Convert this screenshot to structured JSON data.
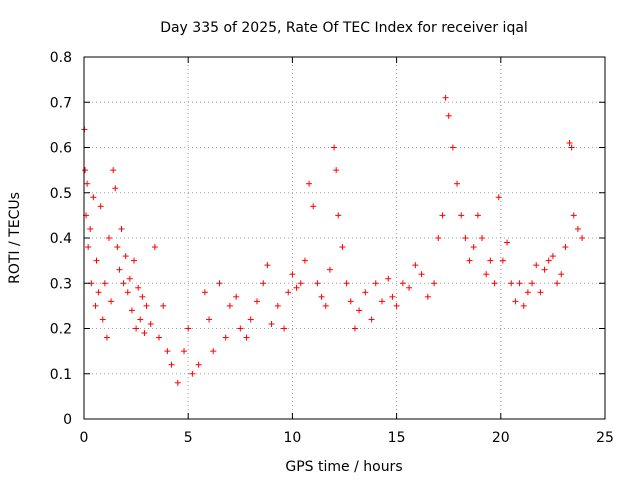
{
  "chart_data": {
    "type": "scatter",
    "title": "Day 335 of 2025, Rate Of TEC Index for receiver iqal",
    "xlabel": "GPS time / hours",
    "ylabel": "ROTI / TECUs",
    "xlim": [
      0,
      25
    ],
    "ylim": [
      0,
      0.8
    ],
    "x_ticks": [
      0,
      5,
      10,
      15,
      20,
      25
    ],
    "x_tick_labels": [
      "0",
      "5",
      "10",
      "15",
      "20",
      "25"
    ],
    "y_ticks": [
      0,
      0.1,
      0.2,
      0.3,
      0.4,
      0.5,
      0.6,
      0.7,
      0.8
    ],
    "y_tick_labels": [
      "0",
      "0.1",
      "0.2",
      "0.3",
      "0.4",
      "0.5",
      "0.6",
      "0.7",
      "0.8"
    ],
    "grid": true,
    "marker": "plus",
    "marker_color": "#ff0000",
    "series": [
      {
        "name": "ROTI",
        "x": [
          0.02,
          0.05,
          0.1,
          0.15,
          0.2,
          0.3,
          0.35,
          0.45,
          0.55,
          0.6,
          0.7,
          0.8,
          0.9,
          1.0,
          1.1,
          1.2,
          1.3,
          1.4,
          1.5,
          1.6,
          1.7,
          1.8,
          1.9,
          2.0,
          2.1,
          2.2,
          2.3,
          2.4,
          2.5,
          2.6,
          2.7,
          2.8,
          2.9,
          3.0,
          3.2,
          3.4,
          3.6,
          3.8,
          4.0,
          4.2,
          4.5,
          4.8,
          5.0,
          5.2,
          5.5,
          5.8,
          6.0,
          6.2,
          6.5,
          6.8,
          7.0,
          7.3,
          7.5,
          7.8,
          8.0,
          8.3,
          8.6,
          8.8,
          9.0,
          9.3,
          9.6,
          9.8,
          10.0,
          10.2,
          10.4,
          10.6,
          10.8,
          11.0,
          11.2,
          11.4,
          11.6,
          11.8,
          12.0,
          12.1,
          12.2,
          12.4,
          12.6,
          12.8,
          13.0,
          13.2,
          13.5,
          13.8,
          14.0,
          14.3,
          14.6,
          14.8,
          15.0,
          15.3,
          15.6,
          15.9,
          16.2,
          16.5,
          16.8,
          17.0,
          17.2,
          17.35,
          17.5,
          17.7,
          17.9,
          18.1,
          18.3,
          18.5,
          18.7,
          18.9,
          19.1,
          19.3,
          19.5,
          19.7,
          19.9,
          20.1,
          20.3,
          20.5,
          20.7,
          20.9,
          21.1,
          21.3,
          21.5,
          21.7,
          21.9,
          22.1,
          22.3,
          22.5,
          22.7,
          22.9,
          23.1,
          23.3,
          23.4,
          23.5,
          23.7,
          23.9
        ],
        "y": [
          0.64,
          0.55,
          0.45,
          0.52,
          0.38,
          0.42,
          0.3,
          0.49,
          0.25,
          0.35,
          0.28,
          0.47,
          0.22,
          0.3,
          0.18,
          0.4,
          0.26,
          0.55,
          0.51,
          0.38,
          0.33,
          0.42,
          0.3,
          0.36,
          0.28,
          0.31,
          0.24,
          0.35,
          0.2,
          0.29,
          0.22,
          0.27,
          0.19,
          0.25,
          0.21,
          0.38,
          0.18,
          0.25,
          0.15,
          0.12,
          0.08,
          0.15,
          0.2,
          0.1,
          0.12,
          0.28,
          0.22,
          0.15,
          0.3,
          0.18,
          0.25,
          0.27,
          0.2,
          0.18,
          0.22,
          0.26,
          0.3,
          0.34,
          0.21,
          0.25,
          0.2,
          0.28,
          0.32,
          0.29,
          0.3,
          0.35,
          0.52,
          0.47,
          0.3,
          0.27,
          0.25,
          0.33,
          0.6,
          0.55,
          0.45,
          0.38,
          0.3,
          0.26,
          0.2,
          0.24,
          0.28,
          0.22,
          0.3,
          0.26,
          0.31,
          0.27,
          0.25,
          0.3,
          0.29,
          0.34,
          0.32,
          0.27,
          0.3,
          0.4,
          0.45,
          0.71,
          0.67,
          0.6,
          0.52,
          0.45,
          0.4,
          0.35,
          0.38,
          0.45,
          0.4,
          0.32,
          0.35,
          0.3,
          0.49,
          0.35,
          0.39,
          0.3,
          0.26,
          0.3,
          0.25,
          0.28,
          0.3,
          0.34,
          0.28,
          0.33,
          0.35,
          0.36,
          0.3,
          0.32,
          0.38,
          0.61,
          0.6,
          0.45,
          0.42,
          0.4
        ]
      }
    ]
  }
}
